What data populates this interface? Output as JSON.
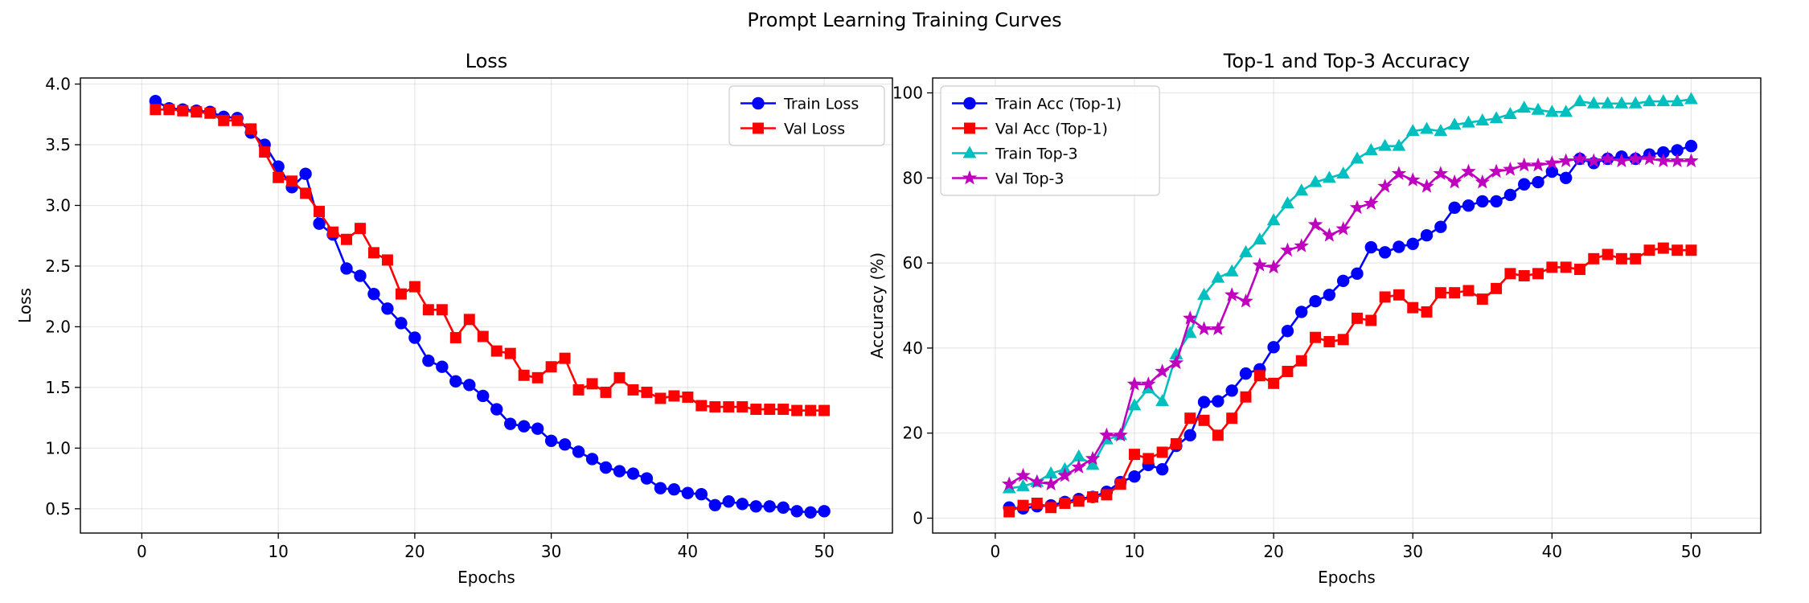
{
  "figure": {
    "title": "Prompt Learning Training Curves"
  },
  "chart_data": [
    {
      "type": "line",
      "title": "Loss",
      "xlabel": "Epochs",
      "ylabel": "Loss",
      "xlim": [
        -4.5,
        55
      ],
      "ylim": [
        0.3,
        4.05
      ],
      "xticks": [
        0,
        10,
        20,
        30,
        40,
        50
      ],
      "yticks": [
        0.5,
        1.0,
        1.5,
        2.0,
        2.5,
        3.0,
        3.5,
        4.0
      ],
      "ytick_labels": [
        "0.5",
        "1.0",
        "1.5",
        "2.0",
        "2.5",
        "3.0",
        "3.5",
        "4.0"
      ],
      "grid": true,
      "legend": "upper right",
      "x": [
        1,
        2,
        3,
        4,
        5,
        6,
        7,
        8,
        9,
        10,
        11,
        12,
        13,
        14,
        15,
        16,
        17,
        18,
        19,
        20,
        21,
        22,
        23,
        24,
        25,
        26,
        27,
        28,
        29,
        30,
        31,
        32,
        33,
        34,
        35,
        36,
        37,
        38,
        39,
        40,
        41,
        42,
        43,
        44,
        45,
        46,
        47,
        48,
        49,
        50
      ],
      "series": [
        {
          "name": "Train Loss",
          "color": "#0000ff",
          "marker": "circle",
          "values": [
            3.86,
            3.8,
            3.79,
            3.78,
            3.77,
            3.73,
            3.72,
            3.6,
            3.5,
            3.32,
            3.15,
            3.26,
            2.85,
            2.76,
            2.48,
            2.42,
            2.27,
            2.15,
            2.03,
            1.91,
            1.72,
            1.67,
            1.55,
            1.52,
            1.43,
            1.32,
            1.2,
            1.18,
            1.16,
            1.06,
            1.03,
            0.97,
            0.91,
            0.84,
            0.81,
            0.79,
            0.75,
            0.67,
            0.66,
            0.63,
            0.62,
            0.53,
            0.56,
            0.54,
            0.52,
            0.52,
            0.51,
            0.48,
            0.47,
            0.48
          ]
        },
        {
          "name": "Val Loss",
          "color": "#ff0000",
          "marker": "square",
          "values": [
            3.79,
            3.79,
            3.78,
            3.77,
            3.76,
            3.7,
            3.7,
            3.63,
            3.44,
            3.23,
            3.2,
            3.1,
            2.95,
            2.78,
            2.72,
            2.81,
            2.61,
            2.55,
            2.27,
            2.33,
            2.14,
            2.14,
            1.91,
            2.06,
            1.92,
            1.8,
            1.78,
            1.6,
            1.58,
            1.67,
            1.74,
            1.48,
            1.53,
            1.46,
            1.58,
            1.48,
            1.46,
            1.41,
            1.43,
            1.42,
            1.35,
            1.34,
            1.34,
            1.34,
            1.32,
            1.32,
            1.32,
            1.31,
            1.31,
            1.31
          ]
        }
      ]
    },
    {
      "type": "line",
      "title": "Top-1 and Top-3 Accuracy",
      "xlabel": "Epochs",
      "ylabel": "Accuracy (%)",
      "xlim": [
        -4.5,
        55
      ],
      "ylim": [
        -3.5,
        103.5
      ],
      "xticks": [
        0,
        10,
        20,
        30,
        40,
        50
      ],
      "yticks": [
        0,
        20,
        40,
        60,
        80,
        100
      ],
      "ytick_labels": [
        "0",
        "20",
        "40",
        "60",
        "80",
        "100"
      ],
      "grid": true,
      "legend": "upper left",
      "x": [
        1,
        2,
        3,
        4,
        5,
        6,
        7,
        8,
        9,
        10,
        11,
        12,
        13,
        14,
        15,
        16,
        17,
        18,
        19,
        20,
        21,
        22,
        23,
        24,
        25,
        26,
        27,
        28,
        29,
        30,
        31,
        32,
        33,
        34,
        35,
        36,
        37,
        38,
        39,
        40,
        41,
        42,
        43,
        44,
        45,
        46,
        47,
        48,
        49,
        50
      ],
      "series": [
        {
          "name": "Train Acc (Top-1)",
          "color": "#0000ff",
          "marker": "circle",
          "values": [
            2.5,
            2.3,
            2.8,
            3.0,
            3.8,
            4.5,
            5.0,
            6.2,
            8.5,
            9.8,
            12.5,
            11.5,
            17.0,
            19.5,
            27.3,
            27.5,
            30.0,
            34.0,
            35.0,
            40.2,
            44.0,
            48.5,
            51.0,
            52.5,
            55.8,
            57.5,
            63.7,
            62.5,
            63.8,
            64.5,
            66.5,
            68.5,
            73.0,
            73.5,
            74.5,
            74.5,
            76.0,
            78.5,
            79.0,
            81.5,
            80.0,
            84.5,
            83.5,
            84.5,
            85.0,
            84.5,
            85.5,
            86.0,
            86.5,
            87.5
          ]
        },
        {
          "name": "Val Acc (Top-1)",
          "color": "#ff0000",
          "marker": "square",
          "values": [
            1.5,
            3.0,
            3.5,
            2.5,
            3.5,
            4.0,
            5.0,
            5.5,
            8.0,
            15.0,
            14.0,
            15.5,
            17.5,
            23.5,
            23.0,
            19.5,
            23.5,
            28.5,
            33.5,
            31.7,
            34.5,
            37.0,
            42.5,
            41.5,
            42.0,
            47.0,
            46.5,
            52.0,
            52.5,
            49.5,
            48.5,
            53.0,
            53.0,
            53.5,
            51.5,
            54.0,
            57.5,
            57.0,
            57.5,
            59.0,
            59.0,
            58.5,
            61.0,
            62.0,
            61.0,
            61.0,
            63.0,
            63.5,
            63.0,
            63.0
          ]
        },
        {
          "name": "Train Top-3",
          "color": "#00bfbf",
          "marker": "triangle",
          "values": [
            7.0,
            7.5,
            8.5,
            10.5,
            11.5,
            14.5,
            12.5,
            18.5,
            19.5,
            26.5,
            30.5,
            27.5,
            38.5,
            43.5,
            52.5,
            56.5,
            58.0,
            62.5,
            65.5,
            70.0,
            74.0,
            77.0,
            79.0,
            80.0,
            81.0,
            84.5,
            86.5,
            87.5,
            87.5,
            91.0,
            91.5,
            91.0,
            92.5,
            93.0,
            93.5,
            94.0,
            95.0,
            96.5,
            96.0,
            95.5,
            95.5,
            98.0,
            97.5,
            97.5,
            97.5,
            97.5,
            98.0,
            98.0,
            98.0,
            98.5
          ]
        },
        {
          "name": "Val Top-3",
          "color": "#bf00bf",
          "marker": "star",
          "values": [
            8.0,
            10.0,
            8.5,
            8.0,
            10.0,
            12.0,
            14.0,
            19.5,
            19.5,
            31.5,
            31.5,
            34.5,
            36.5,
            47.0,
            44.5,
            44.5,
            52.5,
            51.0,
            59.5,
            59.0,
            63.0,
            64.0,
            69.0,
            66.5,
            68.0,
            73.0,
            74.0,
            78.0,
            81.0,
            79.5,
            78.0,
            81.0,
            79.0,
            81.5,
            79.0,
            81.5,
            82.0,
            83.0,
            83.0,
            83.5,
            84.0,
            84.5,
            84.0,
            84.5,
            84.0,
            84.5,
            84.5,
            84.0,
            84.0,
            84.0
          ]
        }
      ]
    }
  ]
}
